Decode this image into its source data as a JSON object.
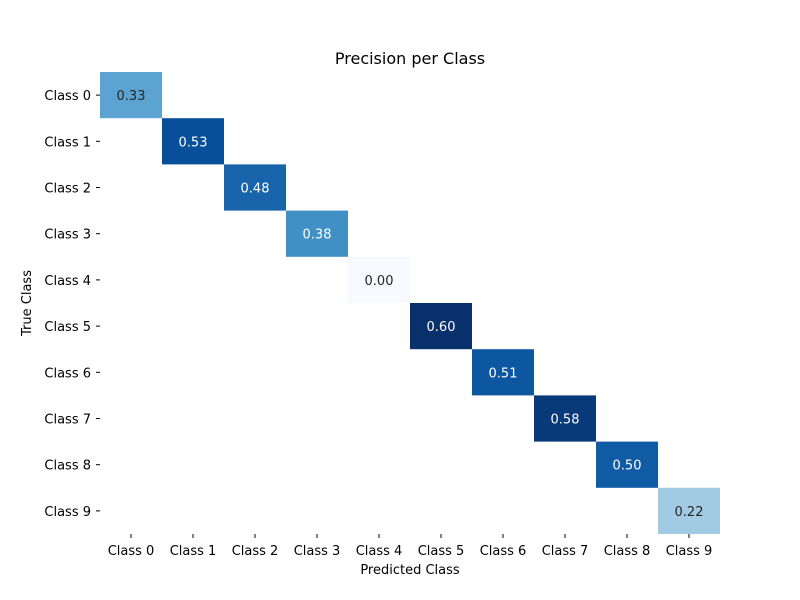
{
  "chart_data": {
    "type": "heatmap",
    "title": "Precision per Class",
    "xlabel": "Predicted Class",
    "ylabel": "True Class",
    "x_categories": [
      "Class 0",
      "Class 1",
      "Class 2",
      "Class 3",
      "Class 4",
      "Class 5",
      "Class 6",
      "Class 7",
      "Class 8",
      "Class 9"
    ],
    "y_categories": [
      "Class 0",
      "Class 1",
      "Class 2",
      "Class 3",
      "Class 4",
      "Class 5",
      "Class 6",
      "Class 7",
      "Class 8",
      "Class 9"
    ],
    "cells": [
      {
        "row": 0,
        "col": 0,
        "value": 0.33,
        "label": "0.33"
      },
      {
        "row": 1,
        "col": 1,
        "value": 0.53,
        "label": "0.53"
      },
      {
        "row": 2,
        "col": 2,
        "value": 0.48,
        "label": "0.48"
      },
      {
        "row": 3,
        "col": 3,
        "value": 0.38,
        "label": "0.38"
      },
      {
        "row": 4,
        "col": 4,
        "value": 0.0,
        "label": "0.00"
      },
      {
        "row": 5,
        "col": 5,
        "value": 0.6,
        "label": "0.60"
      },
      {
        "row": 6,
        "col": 6,
        "value": 0.51,
        "label": "0.51"
      },
      {
        "row": 7,
        "col": 7,
        "value": 0.58,
        "label": "0.58"
      },
      {
        "row": 8,
        "col": 8,
        "value": 0.5,
        "label": "0.50"
      },
      {
        "row": 9,
        "col": 9,
        "value": 0.22,
        "label": "0.22"
      }
    ],
    "colormap": "Blues",
    "value_range": [
      0,
      0.6
    ],
    "grid": false,
    "legend": "none"
  }
}
